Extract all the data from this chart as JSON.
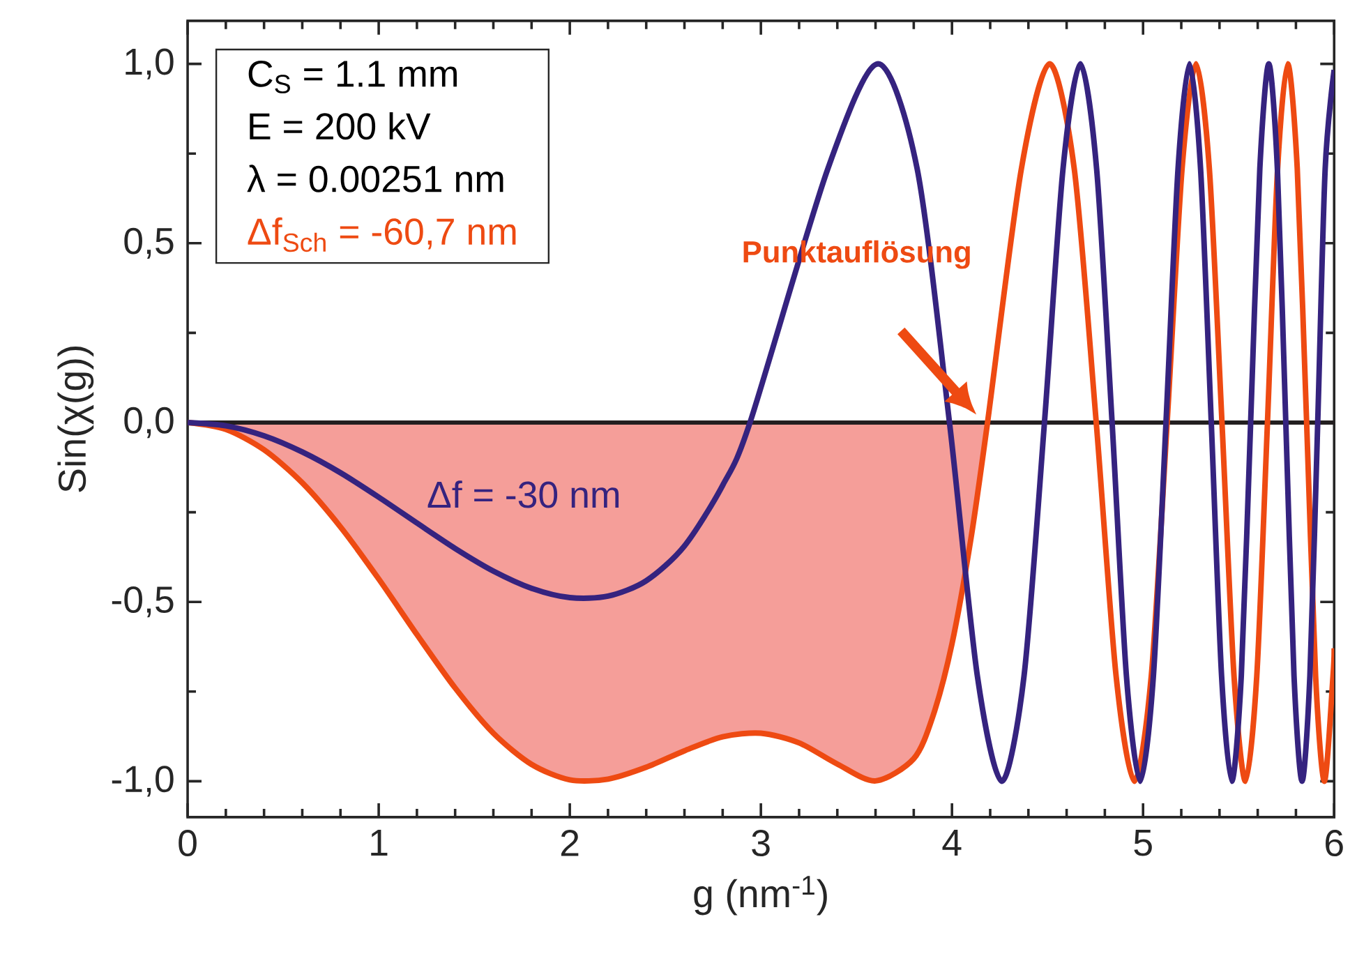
{
  "chart_data": {
    "type": "line",
    "xlabel": "g (nm$^{-1}$)",
    "ylabel": "Sin(χ(g))",
    "xlim": [
      0,
      6
    ],
    "ylim": [
      -1.1,
      1.12
    ],
    "xticks": [
      0,
      1,
      2,
      3,
      4,
      5,
      6
    ],
    "yticks": [
      {
        "value": -1,
        "label": "-1,0"
      },
      {
        "value": -0.5,
        "label": "-0,5"
      },
      {
        "value": 0,
        "label": "0,0"
      },
      {
        "value": 0.5,
        "label": "0,5"
      },
      {
        "value": 1,
        "label": "1,0"
      }
    ],
    "grid": false,
    "ref_lines": [
      {
        "axis": "y",
        "value": 0,
        "color": "#231f20"
      }
    ],
    "annotations": [
      "C$_{S}$ = 1.1 mm",
      "E = 200 kV",
      "λ = 0.00251 nm",
      "Punktauflösung"
    ],
    "series": [
      {
        "type": "area",
        "color": "#f59e99",
        "x": [
          0,
          0.2,
          0.4,
          0.6,
          0.8,
          1.0,
          1.2,
          1.4,
          1.6,
          1.8,
          2.0,
          2.2,
          2.4,
          2.6,
          2.8,
          3.0,
          3.2,
          3.4,
          3.6,
          3.8,
          3.9,
          4.0,
          4.1,
          4.186
        ],
        "values": [
          0,
          -0.019,
          -0.076,
          -0.168,
          -0.291,
          -0.436,
          -0.591,
          -0.74,
          -0.866,
          -0.953,
          -0.996,
          -0.994,
          -0.961,
          -0.915,
          -0.876,
          -0.866,
          -0.893,
          -0.952,
          -0.999,
          -0.937,
          -0.819,
          -0.617,
          -0.321,
          0
        ]
      },
      {
        "name": "Δf$_{Sch}$ = -60,7 nm",
        "color": "#ee4a12",
        "x": [
          0,
          0.2,
          0.4,
          0.6,
          0.8,
          1.0,
          1.2,
          1.4,
          1.6,
          1.8,
          2.0,
          2.2,
          2.4,
          2.6,
          2.8,
          3.0,
          3.2,
          3.4,
          3.6,
          3.8,
          3.9,
          4.0,
          4.1,
          4.186,
          4.363,
          4.511,
          4.64,
          4.755,
          4.859,
          4.955,
          5.043,
          5.126,
          5.204,
          5.277,
          5.347,
          5.413,
          5.476,
          5.536,
          5.595,
          5.651,
          5.704,
          5.757,
          5.807,
          5.856,
          5.903,
          5.949,
          5.994,
          6.0
        ],
        "values": [
          0,
          -0.019,
          -0.076,
          -0.168,
          -0.291,
          -0.436,
          -0.591,
          -0.74,
          -0.866,
          -0.953,
          -0.996,
          -0.994,
          -0.961,
          -0.915,
          -0.876,
          -0.866,
          -0.893,
          -0.952,
          -0.999,
          -0.937,
          -0.819,
          -0.617,
          -0.321,
          0,
          0.707,
          1,
          0.707,
          0,
          -0.707,
          -1,
          -0.707,
          0,
          0.707,
          1,
          0.707,
          0,
          -0.707,
          -1,
          -0.707,
          0,
          0.707,
          1,
          0.707,
          0,
          -0.707,
          -1,
          -0.707,
          -0.629
        ]
      },
      {
        "name": "Δf = -30 nm",
        "color": "#35237f",
        "x": [
          0,
          0.2,
          0.4,
          0.6,
          0.8,
          1.0,
          1.2,
          1.4,
          1.6,
          1.8,
          2.0,
          2.2,
          2.4,
          2.6,
          2.8,
          2.943,
          3.35,
          3.614,
          3.818,
          3.987,
          4.133,
          4.261,
          4.377,
          4.484,
          4.581,
          4.672,
          4.757,
          4.838,
          4.913,
          4.985,
          5.054,
          5.12,
          5.183,
          5.243,
          5.301,
          5.357,
          5.411,
          5.464,
          5.514,
          5.563,
          5.611,
          5.658,
          5.703,
          5.747,
          5.79,
          5.832,
          5.873,
          5.914,
          5.953,
          6.0
        ],
        "values": [
          0,
          -0.009,
          -0.037,
          -0.082,
          -0.14,
          -0.208,
          -0.28,
          -0.351,
          -0.414,
          -0.462,
          -0.488,
          -0.484,
          -0.441,
          -0.344,
          -0.175,
          0,
          0.707,
          1,
          0.707,
          0,
          -0.707,
          -1,
          -0.707,
          0,
          0.707,
          1,
          0.707,
          0,
          -0.707,
          -1,
          -0.707,
          0,
          0.707,
          1,
          0.707,
          0,
          -0.707,
          -1,
          -0.707,
          0,
          0.707,
          1,
          0.707,
          0,
          -0.707,
          -1,
          -0.707,
          0,
          0.707,
          0.983
        ]
      }
    ]
  }
}
